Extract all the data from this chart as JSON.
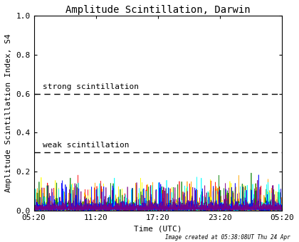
{
  "title": "Amplitude Scintillation, Darwin",
  "xlabel": "Time (UTC)",
  "ylabel": "Amplitude Scintillation Index, S4",
  "xlim": [
    0,
    1440
  ],
  "ylim": [
    0.0,
    1.0
  ],
  "yticks": [
    0.0,
    0.2,
    0.4,
    0.6,
    0.8,
    1.0
  ],
  "ytick_labels": [
    "0.0",
    "0.2",
    "0.4",
    "0.6",
    "0.8",
    "1.0"
  ],
  "xtick_labels": [
    "05:20",
    "11:20",
    "17:20",
    "23:20",
    "05:20"
  ],
  "xtick_positions": [
    0,
    360,
    720,
    1080,
    1440
  ],
  "strong_line_y": 0.6,
  "weak_line_y": 0.3,
  "strong_label": "strong scintillation",
  "weak_label": "weak scintillation",
  "footer_text": "Image created at 05:38:08UT Thu 24 Apr",
  "background_color": "#ffffff",
  "noise_colors": [
    "red",
    "orange",
    "yellow",
    "green",
    "cyan",
    "blue",
    "purple"
  ],
  "noise_seed": 42,
  "n_points": 2000,
  "n_series": 7,
  "title_fontsize": 10,
  "label_fontsize": 8,
  "tick_fontsize": 8,
  "annotation_fontsize": 8,
  "footer_fontsize": 5.5
}
